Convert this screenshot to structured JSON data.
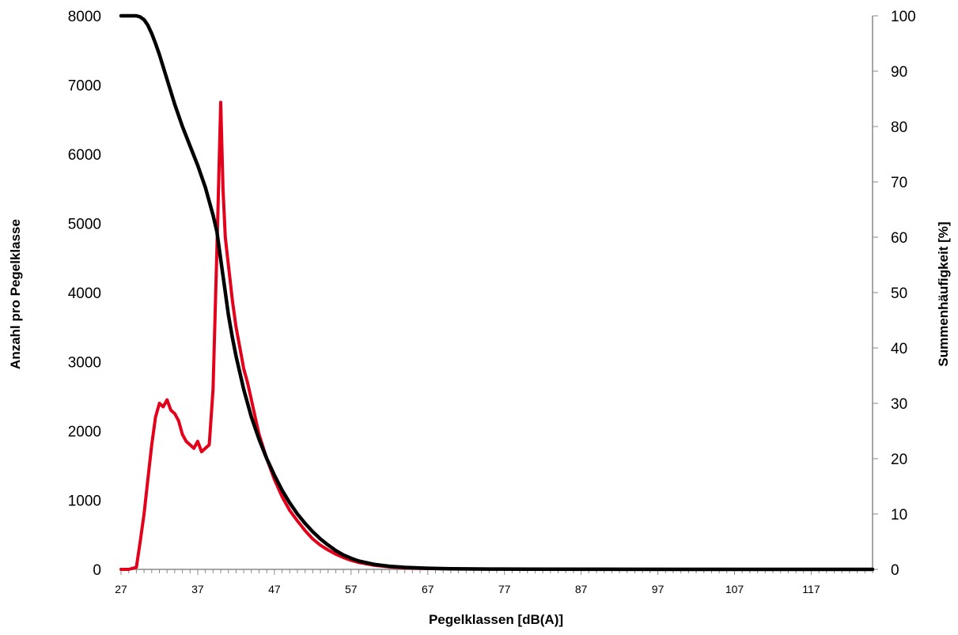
{
  "chart_data": {
    "type": "line",
    "title": "",
    "xlabel": "Pegelklassen [dB(A)]",
    "ylabel": "Anzahl pro Pegelklasse",
    "y2label": "Summenhäufigkeit [%]",
    "xlim": [
      27,
      125
    ],
    "ylim": [
      0,
      8000
    ],
    "y2lim": [
      0,
      100
    ],
    "x_ticks": [
      "27",
      "37",
      "47",
      "57",
      "67",
      "77",
      "87",
      "97",
      "107",
      "117"
    ],
    "y_ticks": [
      "0",
      "1000",
      "2000",
      "3000",
      "4000",
      "5000",
      "6000",
      "7000",
      "8000"
    ],
    "y2_ticks": [
      "0",
      "10",
      "20",
      "30",
      "40",
      "50",
      "60",
      "70",
      "80",
      "90",
      "100"
    ],
    "grid": false,
    "legend": "none",
    "series": [
      {
        "axis": "left",
        "color": "#e3001b",
        "x": [
          27,
          28,
          29,
          29.5,
          30,
          30.5,
          31,
          31.5,
          32,
          32.5,
          33,
          33.5,
          34,
          34.5,
          35,
          35.5,
          36,
          36.5,
          37,
          37.5,
          38,
          38.5,
          39,
          39.3,
          39.6,
          40,
          40.3,
          40.6,
          40.9,
          41.2,
          41.5,
          42,
          42.5,
          43,
          43.5,
          44,
          44.5,
          45,
          46,
          47,
          48,
          49,
          50,
          51,
          52,
          53,
          54,
          55,
          56,
          57,
          58,
          60,
          62,
          64,
          67,
          70,
          75,
          80,
          85,
          90,
          95,
          100,
          110,
          125
        ],
        "y": [
          0,
          0,
          30,
          400,
          800,
          1300,
          1800,
          2200,
          2400,
          2350,
          2450,
          2300,
          2250,
          2150,
          1950,
          1850,
          1800,
          1750,
          1850,
          1700,
          1750,
          1800,
          2600,
          3800,
          5000,
          6750,
          5500,
          4800,
          4500,
          4200,
          3900,
          3500,
          3200,
          2900,
          2700,
          2450,
          2200,
          1950,
          1600,
          1300,
          1050,
          850,
          700,
          560,
          440,
          350,
          280,
          220,
          170,
          130,
          100,
          60,
          35,
          20,
          12,
          8,
          5,
          4,
          3,
          2,
          1,
          1,
          0,
          0
        ]
      },
      {
        "axis": "right",
        "color": "#000000",
        "x": [
          27,
          28,
          29,
          29.5,
          30,
          30.5,
          31,
          31.5,
          32,
          33,
          34,
          35,
          36,
          37,
          38,
          39,
          39.5,
          40,
          40.5,
          41,
          41.5,
          42,
          43,
          44,
          45,
          46,
          47,
          48,
          49,
          50,
          51,
          52,
          53,
          54,
          55,
          56,
          57,
          58,
          60,
          62,
          64,
          67,
          70,
          75,
          80,
          90,
          100,
          110,
          125
        ],
        "y": [
          100,
          100,
          100,
          99.8,
          99.3,
          98.3,
          96.8,
          95,
          93,
          88.5,
          84,
          80,
          76.5,
          73,
          69,
          64,
          61,
          56,
          51,
          46,
          42,
          38.5,
          32.5,
          27.5,
          23.5,
          20,
          17,
          14.3,
          12,
          10,
          8.3,
          6.8,
          5.5,
          4.4,
          3.4,
          2.6,
          2,
          1.5,
          0.9,
          0.55,
          0.35,
          0.2,
          0.12,
          0.06,
          0.03,
          0.01,
          0,
          0,
          0
        ]
      }
    ]
  }
}
